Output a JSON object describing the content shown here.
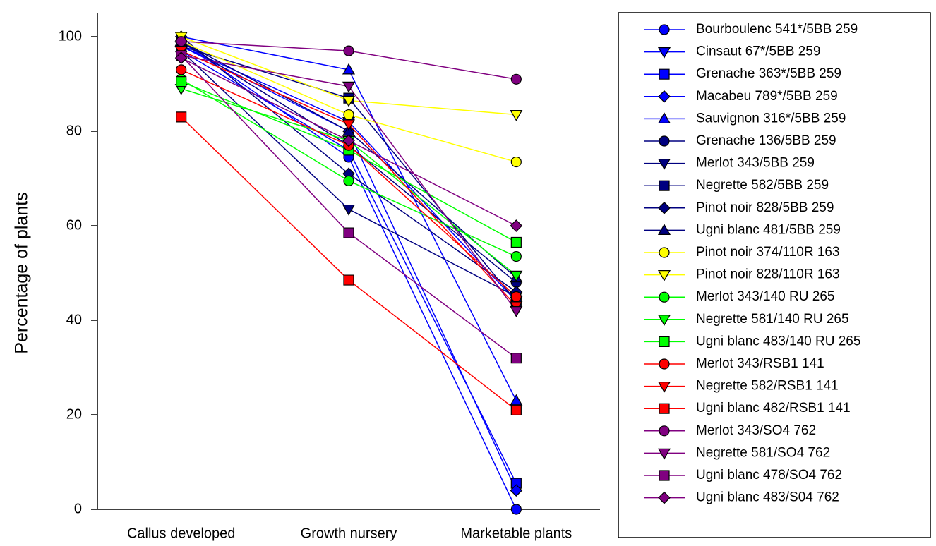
{
  "chart_data": {
    "type": "line",
    "ylabel": "Percentage of plants",
    "categories": [
      "Callus developed",
      "Growth nursery",
      "Marketable plants"
    ],
    "ylim": [
      0,
      105
    ],
    "yticks": [
      0,
      20,
      40,
      60,
      80,
      100
    ],
    "legend": "right",
    "series": [
      {
        "name": "Bourboulenc 541*/5BB 259",
        "color": "#0000ff",
        "marker": "circle",
        "values": [
          99,
          74.5,
          0
        ]
      },
      {
        "name": "Cinsaut 67*/5BB 259",
        "color": "#0000ff",
        "marker": "triangle-down",
        "values": [
          98,
          82,
          44
        ]
      },
      {
        "name": "Grenache 363*/5BB 259",
        "color": "#0000ff",
        "marker": "square",
        "values": [
          97,
          76,
          5.5
        ]
      },
      {
        "name": "Macabeu 789*/5BB 259",
        "color": "#0000ff",
        "marker": "diamond",
        "values": [
          98,
          80,
          4
        ]
      },
      {
        "name": "Sauvignon 316*/5BB 259",
        "color": "#0000ff",
        "marker": "triangle-up",
        "values": [
          100,
          93,
          23
        ]
      },
      {
        "name": "Grenache 136/5BB 259",
        "color": "#000080",
        "marker": "circle",
        "values": [
          99,
          77,
          48
        ]
      },
      {
        "name": "Merlot 343/5BB 259",
        "color": "#000080",
        "marker": "triangle-down",
        "values": [
          97,
          63.5,
          45
        ]
      },
      {
        "name": "Negrette 582/5BB 259",
        "color": "#000080",
        "marker": "square",
        "values": [
          98,
          87,
          44
        ]
      },
      {
        "name": "Pinot noir 828/5BB 259",
        "color": "#000080",
        "marker": "diamond",
        "values": [
          100,
          71,
          46
        ]
      },
      {
        "name": "Ugni blanc 481/5BB 259",
        "color": "#000080",
        "marker": "triangle-up",
        "values": [
          99,
          80,
          49
        ]
      },
      {
        "name": "Pinot noir 374/110R 163",
        "color": "#ffff00",
        "marker": "circle",
        "values": [
          99,
          83.5,
          73.5
        ]
      },
      {
        "name": "Pinot noir 828/110R 163",
        "color": "#ffff00",
        "marker": "triangle-down",
        "values": [
          100,
          86.5,
          83.5
        ]
      },
      {
        "name": "Merlot 343/140 RU 265",
        "color": "#00ff00",
        "marker": "circle",
        "values": [
          91,
          69.5,
          53.5
        ]
      },
      {
        "name": "Negrette 581/140 RU 265",
        "color": "#00ff00",
        "marker": "triangle-down",
        "values": [
          89,
          78,
          49.5
        ]
      },
      {
        "name": "Ugni blanc 483/140 RU 265",
        "color": "#00ff00",
        "marker": "square",
        "values": [
          90.5,
          76,
          56.5
        ]
      },
      {
        "name": "Merlot 343/RSB1 141",
        "color": "#ff0000",
        "marker": "circle",
        "values": [
          93,
          77,
          45
        ]
      },
      {
        "name": "Negrette 582/RSB1 141",
        "color": "#ff0000",
        "marker": "triangle-down",
        "values": [
          97,
          81.5,
          43
        ]
      },
      {
        "name": "Ugni blanc 482/RSB1 141",
        "color": "#ff0000",
        "marker": "square",
        "values": [
          83,
          48.5,
          21
        ]
      },
      {
        "name": "Merlot 343/SO4 762",
        "color": "#800080",
        "marker": "circle",
        "values": [
          99,
          97,
          91
        ]
      },
      {
        "name": "Negrette 581/SO4 762",
        "color": "#800080",
        "marker": "triangle-down",
        "values": [
          96,
          89.5,
          42
        ]
      },
      {
        "name": "Ugni blanc 478/SO4 762",
        "color": "#800080",
        "marker": "square",
        "values": [
          96,
          58.5,
          32
        ]
      },
      {
        "name": "Ugni blanc 483/S04 762",
        "color": "#800080",
        "marker": "diamond",
        "values": [
          95.5,
          78,
          60
        ]
      }
    ]
  }
}
